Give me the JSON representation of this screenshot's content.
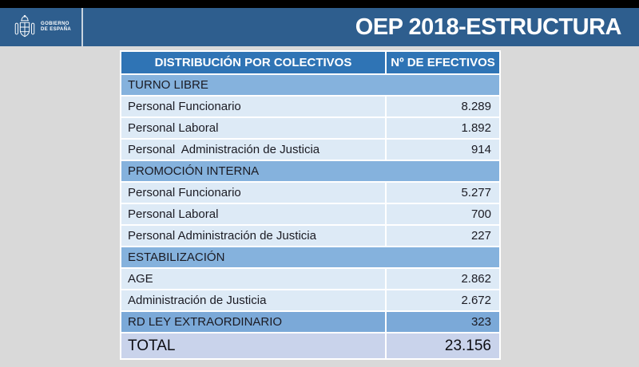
{
  "header": {
    "logo": {
      "emblem_icon": "spain-coat-of-arms",
      "line1": "GOBIERNO",
      "line2": "DE ESPAÑA"
    },
    "title": "OEP 2018-ESTRUCTURA"
  },
  "table": {
    "columns": [
      "DISTRIBUCIÓN POR COLECTIVOS",
      "Nº DE EFECTIVOS"
    ],
    "rows": [
      {
        "type": "section",
        "label": "TURNO LIBRE"
      },
      {
        "type": "data",
        "label": "Personal Funcionario",
        "value": "8.289"
      },
      {
        "type": "data",
        "label": "Personal Laboral",
        "value": "1.892"
      },
      {
        "type": "data",
        "label": "Personal  Administración de Justicia",
        "value": "914"
      },
      {
        "type": "section",
        "label": "PROMOCIÓN INTERNA"
      },
      {
        "type": "data",
        "label": "Personal Funcionario",
        "value": "5.277"
      },
      {
        "type": "data",
        "label": "Personal Laboral",
        "value": "700"
      },
      {
        "type": "data",
        "label": "Personal Administración de Justicia",
        "value": "227"
      },
      {
        "type": "section",
        "label": "ESTABILIZACIÓN"
      },
      {
        "type": "data",
        "label": "AGE",
        "value": "2.862"
      },
      {
        "type": "data",
        "label": "Administración de Justicia",
        "value": "2.672"
      },
      {
        "type": "highlight",
        "label": "RD LEY EXTRAORDINARIO",
        "value": "323"
      },
      {
        "type": "total",
        "label": "TOTAL",
        "value": "23.156"
      }
    ]
  },
  "colors": {
    "top_bar": "#000000",
    "header_bg": "#2E5E8E",
    "slide_bg": "#D9D9D9",
    "table_header_bg": "#2F74B5",
    "section_bg": "#85B2DD",
    "highlight_bg": "#7BA9D8",
    "data_bg": "#DDEAF6",
    "total_bg": "#C9D3EB",
    "cell_text": "#1B1B23",
    "header_text": "#FFFFFF"
  }
}
